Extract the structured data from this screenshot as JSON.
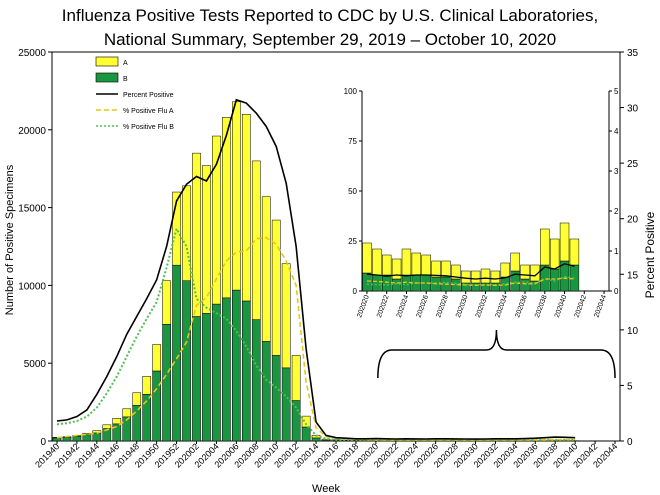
{
  "chart_data": {
    "type": "bar",
    "title_line1": "Influenza Positive Tests Reported to CDC by U.S. Clinical Laboratories,",
    "title_line2": "National Summary, September 29, 2019 – October 10, 2020",
    "xlabel": "Week",
    "ylabel_left": "Number of Positive Specimens",
    "ylabel_right": "Percent Positive",
    "ylim_left": [
      0,
      25000
    ],
    "ylim_right": [
      0,
      35
    ],
    "yticks_left": [
      "0",
      "5000",
      "10000",
      "15000",
      "20000",
      "25000"
    ],
    "yticks_right": [
      "0",
      "5",
      "10",
      "15",
      "20",
      "25",
      "30",
      "35"
    ],
    "tick_labels": [
      "201940",
      "201942",
      "201944",
      "201946",
      "201948",
      "201950",
      "201952",
      "202002",
      "202004",
      "202006",
      "202008",
      "202010",
      "202012",
      "202014",
      "202016",
      "202018",
      "202020",
      "202022",
      "202024",
      "202026",
      "202028",
      "202030",
      "202032",
      "202034",
      "202036",
      "202038",
      "202040",
      "202042",
      "202044"
    ],
    "categories": [
      "201940",
      "201941",
      "201942",
      "201943",
      "201944",
      "201945",
      "201946",
      "201947",
      "201948",
      "201949",
      "201950",
      "201951",
      "201952",
      "202001",
      "202002",
      "202003",
      "202004",
      "202005",
      "202006",
      "202007",
      "202008",
      "202009",
      "202010",
      "202011",
      "202012",
      "202013",
      "202014",
      "202015",
      "202016",
      "202017",
      "202018",
      "202019",
      "202020",
      "202021",
      "202022",
      "202023",
      "202024",
      "202025",
      "202026",
      "202027",
      "202028",
      "202029",
      "202030",
      "202031",
      "202032",
      "202033",
      "202034",
      "202035",
      "202036",
      "202037",
      "202038",
      "202039",
      "202040"
    ],
    "series": [
      {
        "name": "A",
        "color": "#ffff33",
        "values": [
          40,
          50,
          70,
          100,
          150,
          240,
          360,
          520,
          800,
          1150,
          1700,
          2800,
          4700,
          6100,
          10500,
          9500,
          10800,
          11600,
          12100,
          12000,
          10200,
          9300,
          8700,
          6700,
          2900,
          700,
          160,
          60,
          40,
          30,
          20,
          15,
          15,
          13,
          10,
          10,
          10,
          9,
          8,
          8,
          8,
          7,
          7,
          7,
          6,
          6,
          6,
          6,
          7,
          8,
          10,
          10,
          9
        ]
      },
      {
        "name": "B",
        "color": "#1a9641",
        "values": [
          200,
          230,
          300,
          400,
          520,
          800,
          1100,
          1550,
          2300,
          3000,
          4500,
          7500,
          11300,
          10300,
          8000,
          8200,
          8800,
          9200,
          9700,
          9000,
          7800,
          6400,
          5500,
          4700,
          2600,
          900,
          200,
          60,
          40,
          30,
          20,
          15,
          12,
          10,
          10,
          8,
          8,
          8,
          7,
          7,
          7,
          6,
          6,
          6,
          5,
          5,
          6,
          6,
          6,
          7,
          10,
          10,
          10
        ]
      },
      {
        "name": "Percent Positive",
        "color": "#000000",
        "values": [
          1.8,
          1.9,
          2.2,
          2.8,
          4.2,
          5.8,
          7.6,
          9.6,
          11.2,
          12.8,
          14.5,
          17.5,
          21.6,
          23.1,
          23.8,
          23.4,
          24.9,
          27.5,
          30.7,
          30.4,
          29.5,
          28.3,
          26.5,
          23.2,
          17.5,
          8.3,
          1.7,
          0.5,
          0.3,
          0.25,
          0.2,
          0.2,
          0.22,
          0.2,
          0.18,
          0.2,
          0.19,
          0.18,
          0.2,
          0.2,
          0.19,
          0.18,
          0.17,
          0.18,
          0.2,
          0.2,
          0.2,
          0.22,
          0.25,
          0.3,
          0.35,
          0.33,
          0.3
        ]
      },
      {
        "name": "% Positive Flu A",
        "color": "#e6c619",
        "values": [
          0.3,
          0.4,
          0.5,
          0.6,
          0.7,
          1.0,
          1.3,
          1.9,
          2.7,
          3.6,
          4.7,
          6.0,
          7.4,
          8.9,
          12.2,
          12.9,
          14.6,
          16.2,
          17.0,
          17.1,
          18.2,
          18.3,
          17.7,
          16.2,
          14.0,
          5.3,
          1.2,
          0.4,
          0.25,
          0.2,
          0.15,
          0.12,
          0.1,
          0.1,
          0.1,
          0.1,
          0.1,
          0.1,
          0.1,
          0.1,
          0.1,
          0.1,
          0.1,
          0.1,
          0.1,
          0.1,
          0.1,
          0.1,
          0.1,
          0.1,
          0.12,
          0.12,
          0.12
        ]
      },
      {
        "name": "% Positive Flu B",
        "color": "#4fbf4f",
        "values": [
          1.5,
          1.6,
          1.8,
          2.2,
          3.0,
          4.3,
          5.8,
          7.6,
          9.4,
          11.0,
          12.5,
          15.6,
          19.1,
          17.5,
          12.8,
          12.0,
          11.5,
          11.0,
          9.9,
          8.5,
          6.8,
          5.5,
          4.8,
          4.0,
          3.0,
          1.5,
          0.5,
          0.2,
          0.1,
          0.1,
          0.1,
          0.1,
          0.1,
          0.1,
          0.1,
          0.1,
          0.1,
          0.1,
          0.1,
          0.1,
          0.1,
          0.1,
          0.1,
          0.1,
          0.1,
          0.1,
          0.1,
          0.1,
          0.1,
          0.1,
          0.1,
          0.1,
          0.1
        ]
      }
    ],
    "inset": {
      "ylim_left": [
        0,
        100
      ],
      "ylim_right": [
        0,
        5
      ],
      "yticks_left": [
        "0",
        "25",
        "50",
        "75",
        "100"
      ],
      "yticks_right": [
        "0",
        "1",
        "2",
        "3",
        "4",
        "5"
      ],
      "tick_labels": [
        "202020",
        "202022",
        "202024",
        "202026",
        "202028",
        "202030",
        "202032",
        "202034",
        "202036",
        "202038",
        "202040",
        "202042",
        "202044"
      ],
      "categories": [
        "202020",
        "202021",
        "202022",
        "202023",
        "202024",
        "202025",
        "202026",
        "202027",
        "202028",
        "202029",
        "202030",
        "202031",
        "202032",
        "202033",
        "202034",
        "202035",
        "202036",
        "202037",
        "202038",
        "202039",
        "202040",
        "202041"
      ],
      "A_values": [
        15,
        13,
        10,
        10,
        13,
        11,
        10,
        8,
        8,
        7,
        6,
        6,
        7,
        6,
        7,
        9,
        7,
        8,
        18,
        15,
        19,
        13
      ],
      "B_values": [
        9,
        8,
        8,
        6,
        8,
        8,
        8,
        7,
        7,
        6,
        4,
        4,
        4,
        4,
        7,
        10,
        6,
        5,
        13,
        11,
        15,
        13
      ],
      "percent_positive": [
        0.42,
        0.4,
        0.37,
        0.4,
        0.38,
        0.4,
        0.4,
        0.39,
        0.38,
        0.35,
        0.32,
        0.3,
        0.32,
        0.3,
        0.33,
        0.42,
        0.4,
        0.38,
        0.6,
        0.55,
        0.68,
        0.62
      ],
      "pct_flu_a": [
        0.25,
        0.24,
        0.22,
        0.2,
        0.22,
        0.2,
        0.2,
        0.18,
        0.17,
        0.16,
        0.15,
        0.14,
        0.15,
        0.14,
        0.15,
        0.2,
        0.18,
        0.18,
        0.3,
        0.3,
        0.32,
        0.3
      ],
      "pct_flu_b": [
        0.17,
        0.16,
        0.15,
        0.18,
        0.16,
        0.2,
        0.2,
        0.21,
        0.21,
        0.19,
        0.17,
        0.16,
        0.17,
        0.16,
        0.18,
        0.22,
        0.22,
        0.2,
        0.3,
        0.25,
        0.36,
        0.32
      ]
    }
  }
}
